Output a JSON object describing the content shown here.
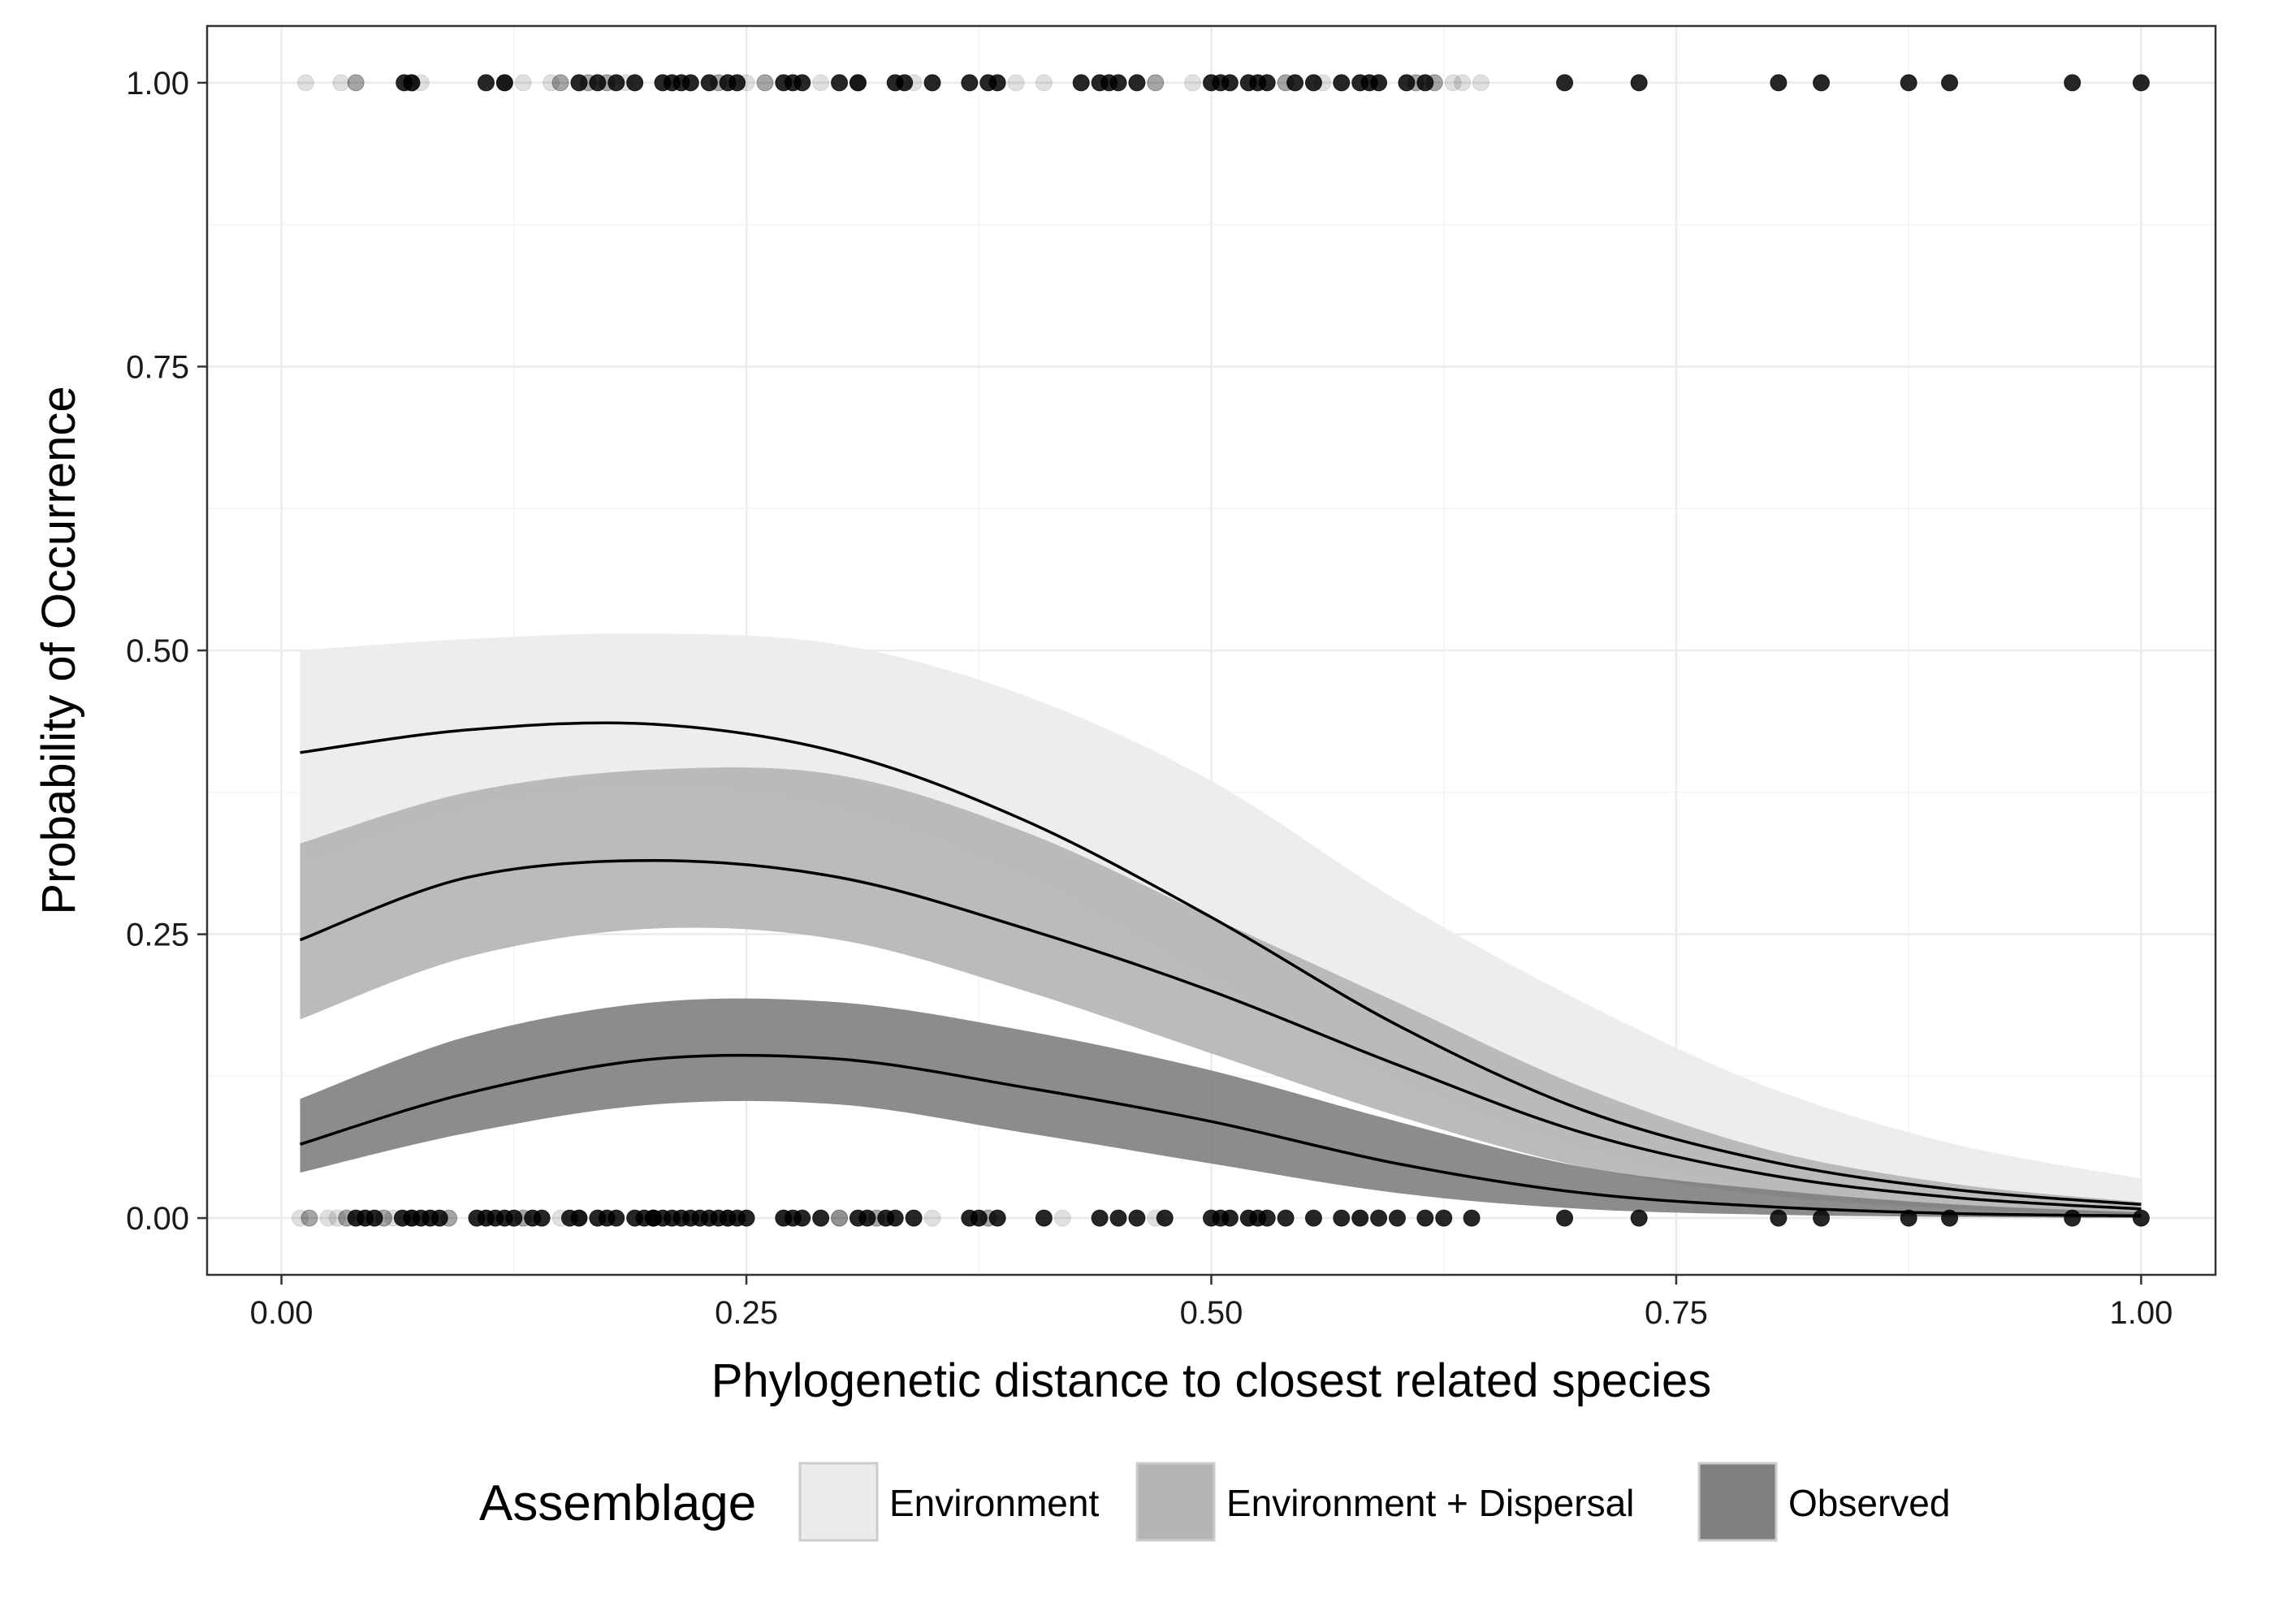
{
  "chart_data": {
    "type": "scatter",
    "title": "",
    "xlabel": "Phylogenetic distance to closest related species",
    "ylabel": "Probability of Occurrence",
    "xlim": [
      -0.04,
      1.04
    ],
    "ylim": [
      -0.05,
      1.05
    ],
    "x_ticks": [
      0.0,
      0.25,
      0.5,
      0.75,
      1.0
    ],
    "x_tick_labels": [
      "0.00",
      "0.25",
      "0.50",
      "0.75",
      "1.00"
    ],
    "y_ticks": [
      0.0,
      0.25,
      0.5,
      0.75,
      1.0
    ],
    "y_tick_labels": [
      "0.00",
      "0.25",
      "0.50",
      "0.75",
      "1.00"
    ],
    "grid": true,
    "legend": {
      "title": "Assemblage",
      "position": "bottom"
    },
    "series": [
      {
        "name": "Environment",
        "fill_color": "#ebebeb",
        "point_opacity": 0.12,
        "x": [
          0.01,
          0.1,
          0.2,
          0.3,
          0.4,
          0.5,
          0.6,
          0.7,
          0.8,
          0.9,
          1.0
        ],
        "fit": [
          0.41,
          0.43,
          0.435,
          0.41,
          0.35,
          0.265,
          0.17,
          0.095,
          0.05,
          0.025,
          0.012
        ],
        "lower": [
          0.31,
          0.36,
          0.38,
          0.36,
          0.3,
          0.21,
          0.12,
          0.06,
          0.025,
          0.012,
          0.004
        ],
        "upper": [
          0.5,
          0.51,
          0.515,
          0.505,
          0.46,
          0.385,
          0.28,
          0.19,
          0.115,
          0.065,
          0.035
        ],
        "points_presence_x": [
          0.013,
          0.032,
          0.075,
          0.13,
          0.145,
          0.185,
          0.25,
          0.29,
          0.34,
          0.395,
          0.41,
          0.49,
          0.56,
          0.63,
          0.635,
          0.645
        ],
        "points_absence_x": [
          0.01,
          0.025,
          0.03,
          0.045,
          0.06,
          0.08,
          0.11,
          0.15,
          0.2,
          0.27,
          0.3,
          0.35,
          0.42,
          0.47,
          0.52,
          0.58
        ]
      },
      {
        "name": "Environment + Dispersal",
        "fill_color": "#b4b4b4",
        "point_opacity": 0.35,
        "x": [
          0.01,
          0.1,
          0.2,
          0.3,
          0.4,
          0.5,
          0.6,
          0.7,
          0.8,
          0.9,
          1.0
        ],
        "fit": [
          0.245,
          0.3,
          0.315,
          0.3,
          0.255,
          0.2,
          0.135,
          0.075,
          0.038,
          0.018,
          0.008
        ],
        "lower": [
          0.175,
          0.23,
          0.255,
          0.245,
          0.2,
          0.145,
          0.09,
          0.045,
          0.02,
          0.008,
          0.003
        ],
        "upper": [
          0.33,
          0.375,
          0.395,
          0.39,
          0.34,
          0.265,
          0.19,
          0.115,
          0.06,
          0.03,
          0.014
        ],
        "points_presence_x": [
          0.04,
          0.07,
          0.12,
          0.15,
          0.165,
          0.175,
          0.235,
          0.26,
          0.31,
          0.47,
          0.54,
          0.61,
          0.62
        ],
        "points_absence_x": [
          0.015,
          0.035,
          0.055,
          0.07,
          0.09,
          0.13,
          0.16,
          0.24,
          0.3,
          0.32,
          0.38
        ]
      },
      {
        "name": "Observed",
        "fill_color": "#7f7f7f",
        "point_opacity": 0.85,
        "x": [
          0.01,
          0.1,
          0.2,
          0.3,
          0.4,
          0.5,
          0.6,
          0.7,
          0.8,
          0.9,
          1.0
        ],
        "fit": [
          0.065,
          0.11,
          0.14,
          0.14,
          0.115,
          0.085,
          0.048,
          0.022,
          0.01,
          0.004,
          0.002
        ],
        "lower": [
          0.04,
          0.075,
          0.1,
          0.1,
          0.075,
          0.048,
          0.022,
          0.008,
          0.003,
          0.001,
          0.0
        ],
        "upper": [
          0.105,
          0.16,
          0.19,
          0.19,
          0.165,
          0.13,
          0.085,
          0.045,
          0.025,
          0.012,
          0.005
        ],
        "points_presence_x": [
          0.066,
          0.07,
          0.11,
          0.12,
          0.16,
          0.17,
          0.18,
          0.19,
          0.205,
          0.21,
          0.215,
          0.22,
          0.23,
          0.24,
          0.245,
          0.27,
          0.275,
          0.28,
          0.3,
          0.31,
          0.33,
          0.335,
          0.35,
          0.37,
          0.38,
          0.385,
          0.43,
          0.44,
          0.445,
          0.45,
          0.46,
          0.5,
          0.505,
          0.51,
          0.52,
          0.525,
          0.53,
          0.545,
          0.555,
          0.57,
          0.58,
          0.585,
          0.59,
          0.605,
          0.615,
          0.69,
          0.73,
          0.805,
          0.828,
          0.875,
          0.897,
          0.963,
          1.0
        ],
        "points_absence_x": [
          0.04,
          0.045,
          0.05,
          0.065,
          0.07,
          0.075,
          0.08,
          0.085,
          0.105,
          0.11,
          0.115,
          0.12,
          0.125,
          0.135,
          0.14,
          0.155,
          0.16,
          0.17,
          0.175,
          0.18,
          0.19,
          0.195,
          0.2,
          0.2,
          0.205,
          0.21,
          0.215,
          0.22,
          0.225,
          0.23,
          0.235,
          0.24,
          0.245,
          0.25,
          0.27,
          0.275,
          0.28,
          0.29,
          0.31,
          0.315,
          0.325,
          0.33,
          0.34,
          0.37,
          0.375,
          0.385,
          0.41,
          0.44,
          0.45,
          0.46,
          0.475,
          0.5,
          0.505,
          0.51,
          0.52,
          0.525,
          0.53,
          0.54,
          0.555,
          0.57,
          0.58,
          0.59,
          0.6,
          0.615,
          0.625,
          0.64,
          0.69,
          0.73,
          0.805,
          0.828,
          0.875,
          0.897,
          0.963,
          1.0
        ]
      }
    ]
  }
}
